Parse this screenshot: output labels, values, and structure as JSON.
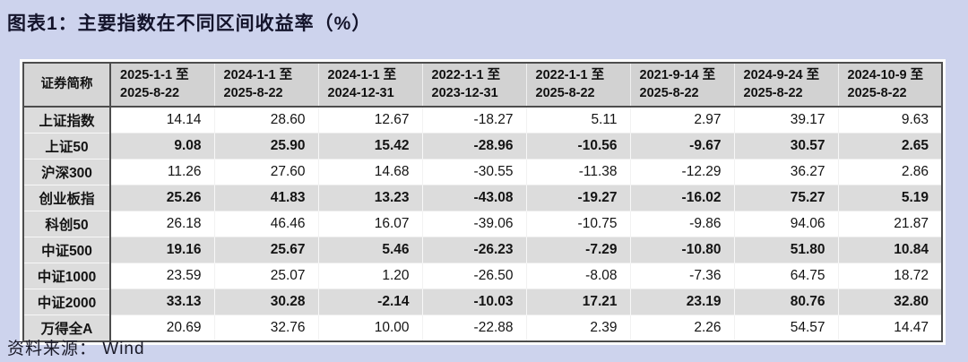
{
  "title": "图表1：主要指数在不同区间收益率（%）",
  "source": "资料来源： Wind",
  "colors": {
    "page_background": "#cdd3ed",
    "header_background": "#d2d2d2",
    "alt_row_background": "#dcdcdc",
    "border_dark": "#4d4d4d",
    "text": "#14142b"
  },
  "chart_data": {
    "type": "table",
    "name_column_header": "证券简称",
    "period_columns": [
      {
        "line1": "2025-1-1 至",
        "line2": "2025-8-22"
      },
      {
        "line1": "2024-1-1 至",
        "line2": "2025-8-22"
      },
      {
        "line1": "2024-1-1 至",
        "line2": "2024-12-31"
      },
      {
        "line1": "2022-1-1 至",
        "line2": "2023-12-31"
      },
      {
        "line1": "2022-1-1 至",
        "line2": "2025-8-22"
      },
      {
        "line1": "2021-9-14 至",
        "line2": "2025-8-22"
      },
      {
        "line1": "2024-9-24 至",
        "line2": "2025-8-22"
      },
      {
        "line1": "2024-10-9 至",
        "line2": "2025-8-22"
      }
    ],
    "rows": [
      {
        "name": "上证指数",
        "values": [
          "14.14",
          "28.60",
          "12.67",
          "-18.27",
          "5.11",
          "2.97",
          "39.17",
          "9.63"
        ]
      },
      {
        "name": "上证50",
        "values": [
          "9.08",
          "25.90",
          "15.42",
          "-28.96",
          "-10.56",
          "-9.67",
          "30.57",
          "2.65"
        ]
      },
      {
        "name": "沪深300",
        "values": [
          "11.26",
          "27.60",
          "14.68",
          "-30.55",
          "-11.38",
          "-12.29",
          "36.27",
          "2.86"
        ]
      },
      {
        "name": "创业板指",
        "values": [
          "25.26",
          "41.83",
          "13.23",
          "-43.08",
          "-19.27",
          "-16.02",
          "75.27",
          "5.19"
        ]
      },
      {
        "name": "科创50",
        "values": [
          "26.18",
          "46.46",
          "16.07",
          "-39.06",
          "-10.75",
          "-9.86",
          "94.06",
          "21.87"
        ]
      },
      {
        "name": "中证500",
        "values": [
          "19.16",
          "25.67",
          "5.46",
          "-26.23",
          "-7.29",
          "-10.80",
          "51.80",
          "10.84"
        ]
      },
      {
        "name": "中证1000",
        "values": [
          "23.59",
          "25.07",
          "1.20",
          "-26.50",
          "-8.08",
          "-7.36",
          "64.75",
          "18.72"
        ]
      },
      {
        "name": "中证2000",
        "values": [
          "33.13",
          "30.28",
          "-2.14",
          "-10.03",
          "17.21",
          "23.19",
          "80.76",
          "32.80"
        ]
      },
      {
        "name": "万得全A",
        "values": [
          "20.69",
          "32.76",
          "10.00",
          "-22.88",
          "2.39",
          "2.26",
          "54.57",
          "14.47"
        ]
      }
    ]
  }
}
